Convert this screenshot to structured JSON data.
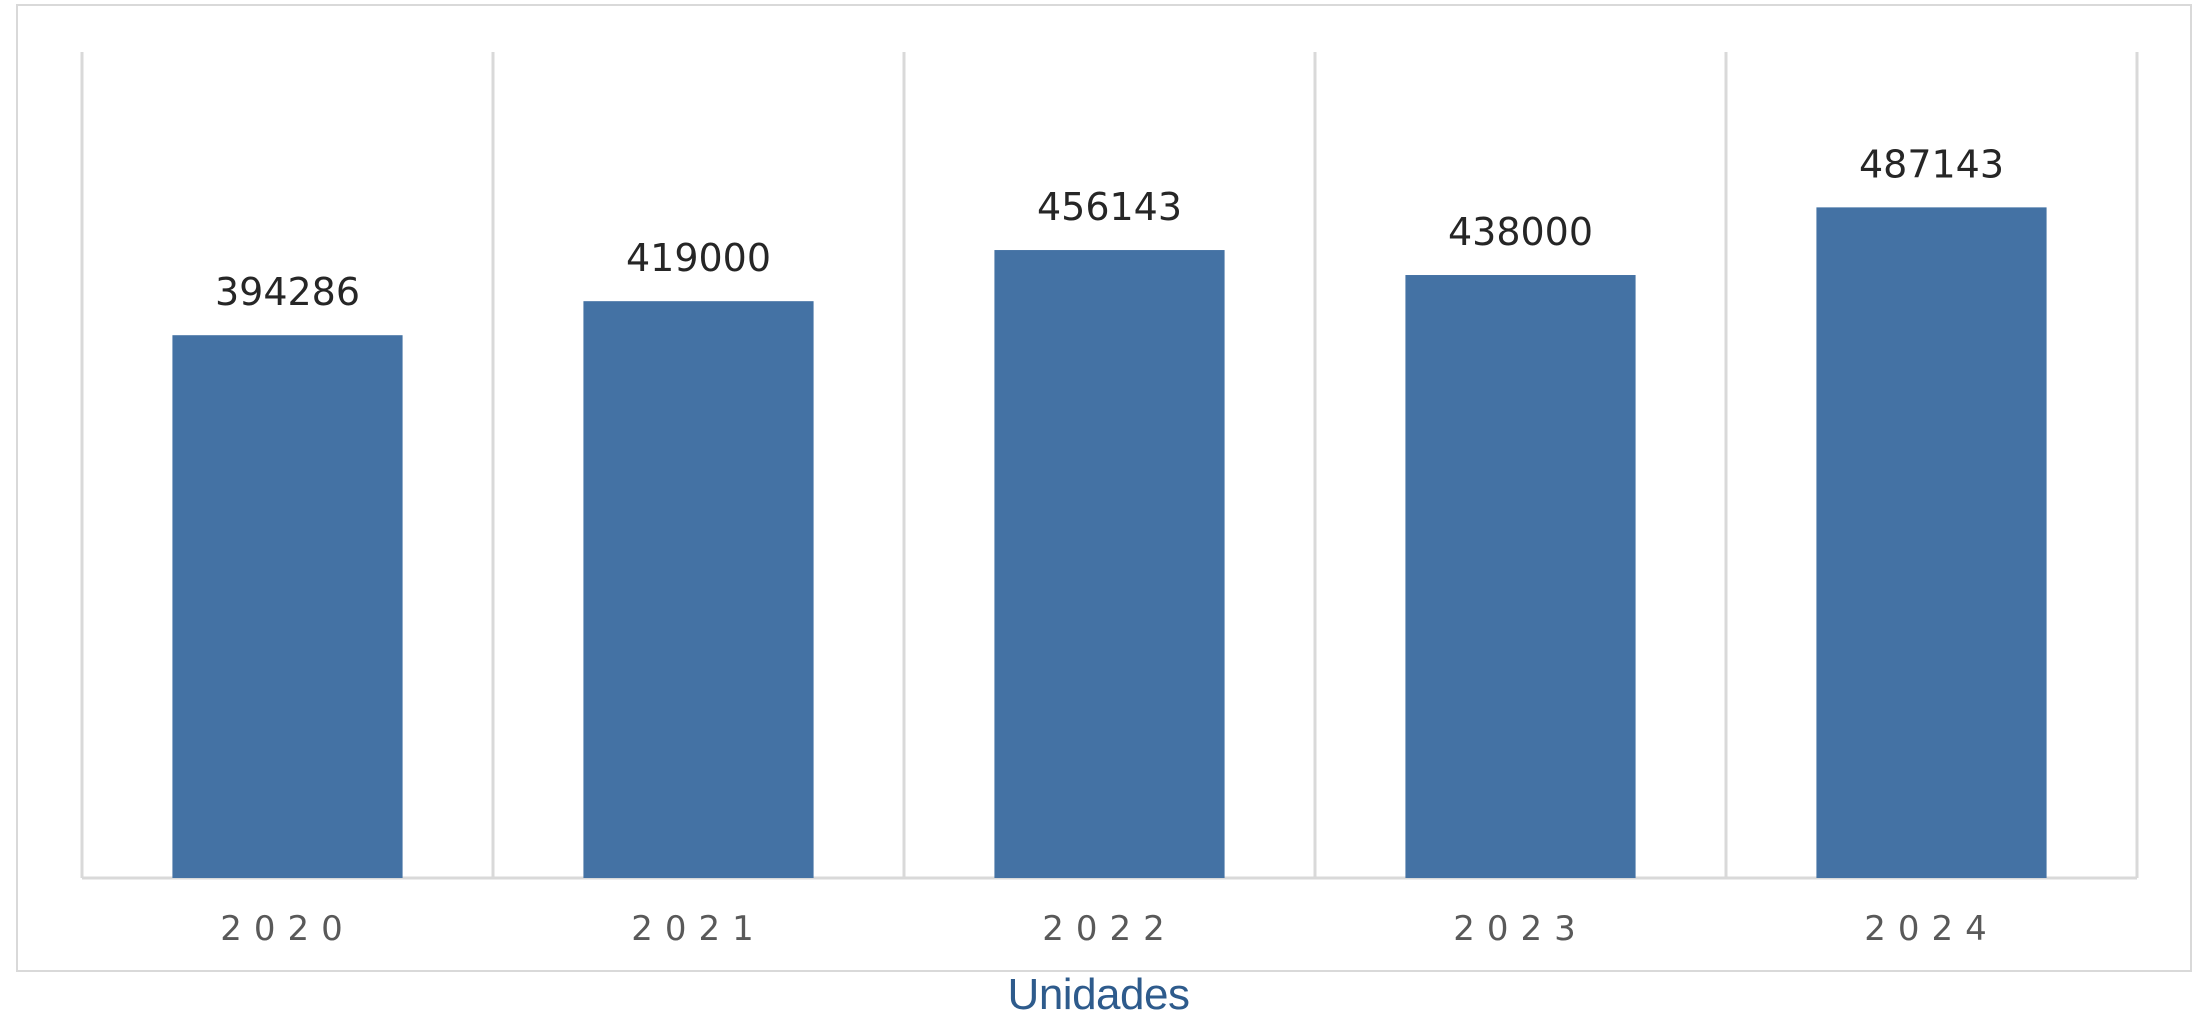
{
  "chart_data": {
    "type": "bar",
    "categories": [
      "2020",
      "2021",
      "2022",
      "2023",
      "2024"
    ],
    "values": [
      394286,
      419000,
      456143,
      438000,
      487143
    ],
    "data_labels": [
      "394286",
      "419000",
      "456143",
      "438000",
      "487143"
    ],
    "xlabel": "Unidades",
    "ylabel": "",
    "ylim": [
      0,
      600000
    ],
    "grid": "vertical",
    "legend": "none",
    "bar_color": "#4472a4",
    "grid_color": "#d9d9d9",
    "tick_label_color": "#595959",
    "data_label_color": "#262626"
  },
  "caption": {
    "text": "Unidades",
    "color": "#2e5b8c"
  }
}
